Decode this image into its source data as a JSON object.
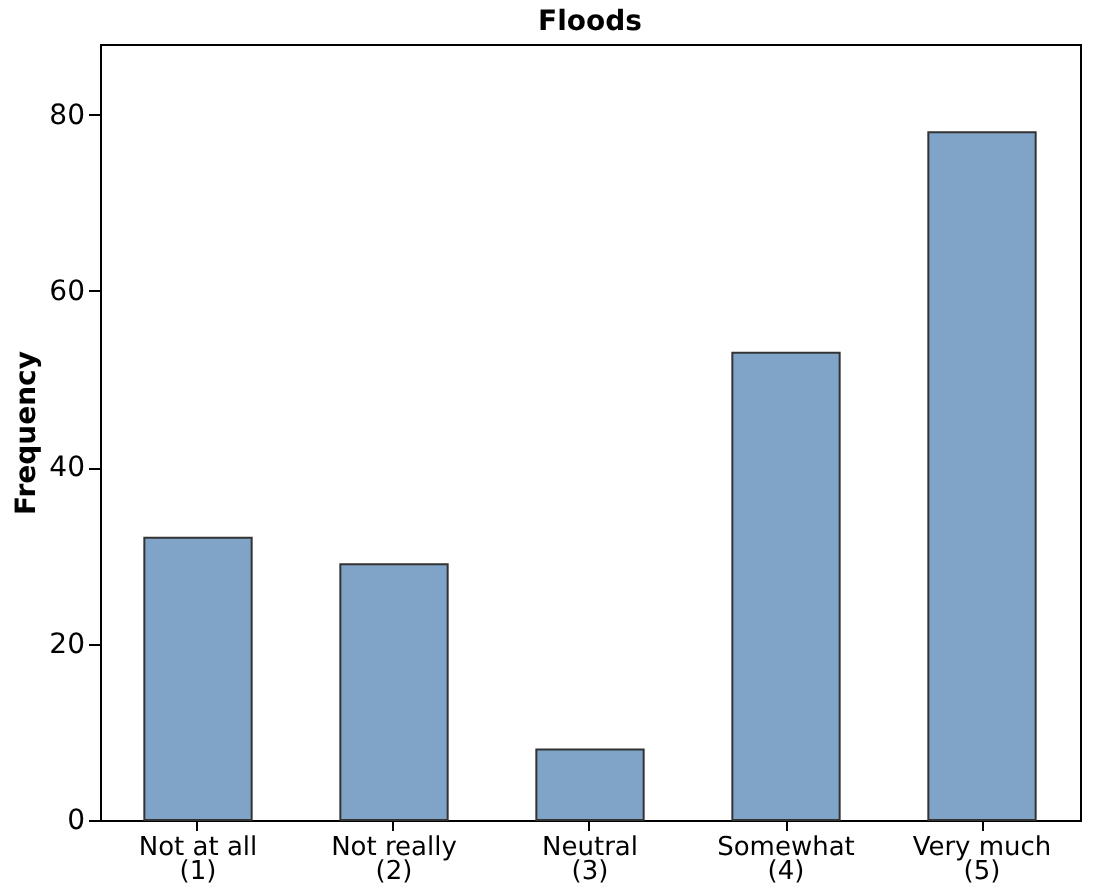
{
  "chart_data": {
    "type": "bar",
    "title": "Floods",
    "ylabel": "Frequency",
    "categories": [
      "Not at all\n(1)",
      "Not really\n(2)",
      "Neutral\n(3)",
      "Somewhat\n(4)",
      "Very much\n(5)"
    ],
    "values": [
      32,
      29,
      8,
      53,
      78
    ],
    "color": "#7fa4c8",
    "ylim": [
      0,
      88
    ],
    "yticks": [
      0,
      20,
      40,
      60,
      80
    ],
    "grid": false
  }
}
